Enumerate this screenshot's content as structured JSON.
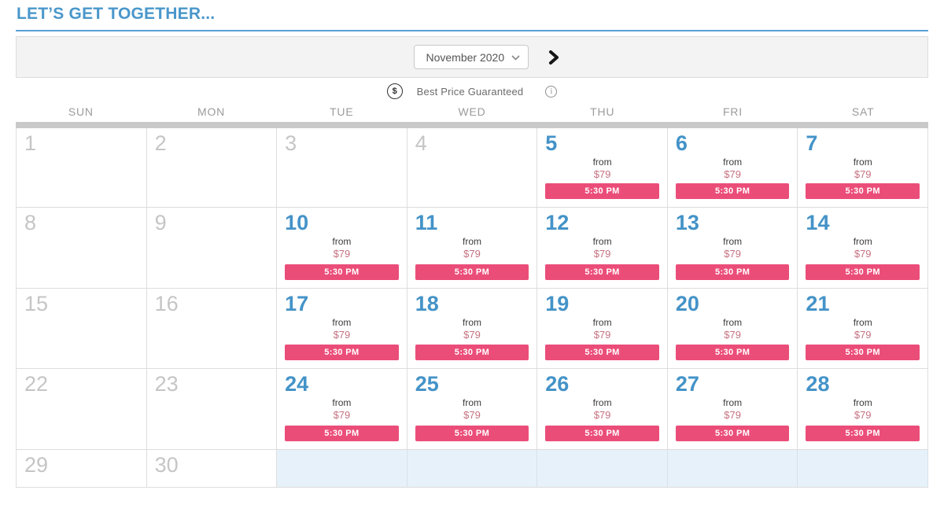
{
  "page": {
    "title": "LET’S GET TOGETHER..."
  },
  "toolbar": {
    "month_value": "November 2020",
    "next_icon": "chevron-right"
  },
  "banner": {
    "dollar_icon": "$",
    "text": "Best Price Guaranteed",
    "info_icon": "i"
  },
  "calendar": {
    "day_headers": [
      "SUN",
      "MON",
      "TUE",
      "WED",
      "THU",
      "FRI",
      "SAT"
    ],
    "offer": {
      "from_label": "from",
      "price": "$79",
      "time": "5:30 PM"
    },
    "weeks": [
      [
        {
          "day": 1,
          "state": "disabled"
        },
        {
          "day": 2,
          "state": "disabled"
        },
        {
          "day": 3,
          "state": "disabled"
        },
        {
          "day": 4,
          "state": "disabled"
        },
        {
          "day": 5,
          "state": "available"
        },
        {
          "day": 6,
          "state": "available"
        },
        {
          "day": 7,
          "state": "available"
        }
      ],
      [
        {
          "day": 8,
          "state": "disabled"
        },
        {
          "day": 9,
          "state": "disabled"
        },
        {
          "day": 10,
          "state": "available"
        },
        {
          "day": 11,
          "state": "available"
        },
        {
          "day": 12,
          "state": "available"
        },
        {
          "day": 13,
          "state": "available"
        },
        {
          "day": 14,
          "state": "available"
        }
      ],
      [
        {
          "day": 15,
          "state": "disabled"
        },
        {
          "day": 16,
          "state": "disabled"
        },
        {
          "day": 17,
          "state": "available"
        },
        {
          "day": 18,
          "state": "available"
        },
        {
          "day": 19,
          "state": "available"
        },
        {
          "day": 20,
          "state": "available"
        },
        {
          "day": 21,
          "state": "available"
        }
      ],
      [
        {
          "day": 22,
          "state": "disabled"
        },
        {
          "day": 23,
          "state": "disabled"
        },
        {
          "day": 24,
          "state": "available"
        },
        {
          "day": 25,
          "state": "available"
        },
        {
          "day": 26,
          "state": "available"
        },
        {
          "day": 27,
          "state": "available"
        },
        {
          "day": 28,
          "state": "available"
        }
      ],
      [
        {
          "day": 29,
          "state": "disabled"
        },
        {
          "day": 30,
          "state": "disabled"
        },
        {
          "day": null,
          "state": "empty"
        },
        {
          "day": null,
          "state": "empty"
        },
        {
          "day": null,
          "state": "empty"
        },
        {
          "day": null,
          "state": "empty"
        },
        {
          "day": null,
          "state": "empty"
        }
      ]
    ]
  },
  "colors": {
    "accent_blue": "#4a97cb",
    "underline_blue": "#57a0d5",
    "pink_button": "#eb4d79",
    "price_pink": "#c5717f",
    "disabled_gray": "#c5c5c5",
    "header_gray": "#9b9b9b",
    "toolbar_bg": "#f4f3f3",
    "thick_bar_gray": "#c9c9c9",
    "empty_cell_blue": "#e6f1f9"
  }
}
